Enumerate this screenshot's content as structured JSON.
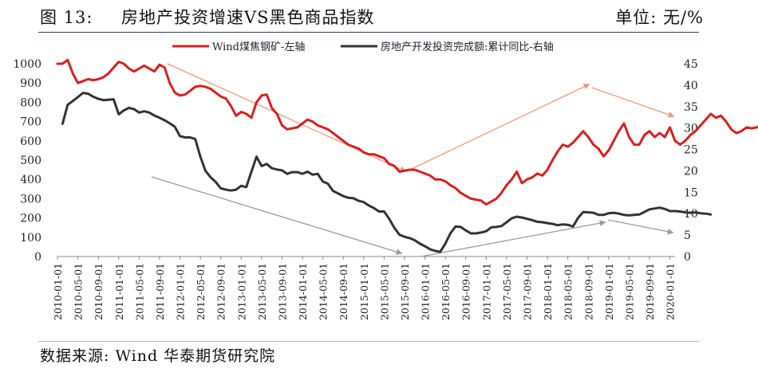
{
  "header": {
    "figure_label": "图 13:",
    "title": "房地产投资增速VS黑色商品指数",
    "unit": "单位: 无/%"
  },
  "footer": {
    "source": "数据来源: Wind 华泰期货研究院"
  },
  "colors": {
    "left_series": "#d62020",
    "right_series": "#333333",
    "arrow_down": "#9a9a9a",
    "arrow_up": "#ee9a7a"
  },
  "chart_data": {
    "type": "line",
    "title": "房地产投资增速VS黑色商品指数",
    "x_tick_labels": [
      "2010-01-01",
      "2010-05-01",
      "2010-09-01",
      "2011-01-01",
      "2011-05-01",
      "2011-09-01",
      "2012-01-01",
      "2012-05-01",
      "2012-09-01",
      "2013-01-01",
      "2013-05-01",
      "2013-09-01",
      "2014-01-01",
      "2014-05-01",
      "2014-09-01",
      "2015-01-01",
      "2015-05-01",
      "2015-09-01",
      "2016-01-01",
      "2016-05-01",
      "2016-09-01",
      "2017-01-01",
      "2017-05-01",
      "2017-09-01",
      "2018-01-01",
      "2018-05-01",
      "2018-09-01",
      "2019-01-01",
      "2019-05-01",
      "2019-09-01",
      "2020-01-01"
    ],
    "y_left": {
      "ticks": [
        0,
        100,
        200,
        300,
        400,
        500,
        600,
        700,
        800,
        900,
        1000
      ],
      "ylim": [
        0,
        1000
      ]
    },
    "y_right": {
      "ticks": [
        0,
        5,
        10,
        15,
        20,
        25,
        30,
        35,
        40,
        45
      ],
      "ylim": [
        0,
        45
      ]
    },
    "legend": "top-center",
    "series": [
      {
        "name": "Wind煤焦钢矿-左轴",
        "axis": "left",
        "color": "#d62020",
        "x_start": "2010-01",
        "values": [
          1000,
          1000,
          1020,
          950,
          900,
          910,
          920,
          915,
          920,
          930,
          950,
          980,
          1010,
          1000,
          975,
          960,
          975,
          990,
          975,
          960,
          995,
          980,
          900,
          850,
          835,
          840,
          860,
          880,
          885,
          880,
          870,
          850,
          830,
          820,
          780,
          730,
          750,
          740,
          720,
          800,
          835,
          840,
          770,
          740,
          680,
          660,
          665,
          670,
          690,
          710,
          700,
          680,
          670,
          660,
          640,
          620,
          600,
          580,
          570,
          560,
          540,
          530,
          530,
          520,
          510,
          480,
          470,
          440,
          445,
          450,
          450,
          440,
          430,
          420,
          400,
          400,
          390,
          370,
          355,
          330,
          315,
          300,
          295,
          290,
          270,
          285,
          300,
          330,
          370,
          400,
          440,
          380,
          400,
          410,
          430,
          420,
          450,
          500,
          545,
          580,
          570,
          590,
          620,
          650,
          620,
          580,
          560,
          520,
          550,
          600,
          650,
          690,
          620,
          580,
          580,
          630,
          650,
          620,
          640,
          620,
          670,
          600,
          580,
          600,
          630,
          650,
          680,
          710,
          740,
          720,
          730,
          700,
          660,
          640,
          650,
          670,
          665,
          670,
          680,
          700,
          720,
          710,
          610,
          600,
          590,
          600,
          620,
          610,
          600,
          590
        ]
      },
      {
        "name": "房地产开发投资完成额:累计同比-右轴",
        "axis": "right",
        "color": "#333333",
        "x_start": "2010-02",
        "values": [
          31,
          35.4,
          36.3,
          37.2,
          38.2,
          38.0,
          37.3,
          36.8,
          36.5,
          36.6,
          36.7,
          33.2,
          34.1,
          34.7,
          34.4,
          33.6,
          33.9,
          33.6,
          32.9,
          32.4,
          31.8,
          31.1,
          30.3,
          28.1,
          27.8,
          27.8,
          27.4,
          23.3,
          20.0,
          18.5,
          17.4,
          15.9,
          15.6,
          15.4,
          15.6,
          16.5,
          16.2,
          19.8,
          23.3,
          21.1,
          21.6,
          20.6,
          20.3,
          20.1,
          19.3,
          19.7,
          19.7,
          19.3,
          19.8,
          19.1,
          19.3,
          17.5,
          17.0,
          15.3,
          14.7,
          14.1,
          13.7,
          13.6,
          13.0,
          12.7,
          11.9,
          11.3,
          10.5,
          10.5,
          8.8,
          6.7,
          5.1,
          4.6,
          4.3,
          3.8,
          3.0,
          2.4,
          1.7,
          1.3,
          1.1,
          3.0,
          5.4,
          7.0,
          6.9,
          6.1,
          5.4,
          5.4,
          5.6,
          5.9,
          6.8,
          6.9,
          7.1,
          8.0,
          8.9,
          9.3,
          9.1,
          8.8,
          8.5,
          8.1,
          8.0,
          7.8,
          7.6,
          7.3,
          7.5,
          7.4,
          7.0,
          9.0,
          10.4,
          10.3,
          10.2,
          9.7,
          9.7,
          10.1,
          10.2,
          10.0,
          9.7,
          9.6,
          9.7,
          9.8,
          10.4,
          11.0,
          11.2,
          11.4,
          11.1,
          10.6,
          10.6,
          10.5,
          10.3,
          10.2,
          10.3,
          10.1,
          10.0,
          9.8
        ]
      }
    ]
  }
}
